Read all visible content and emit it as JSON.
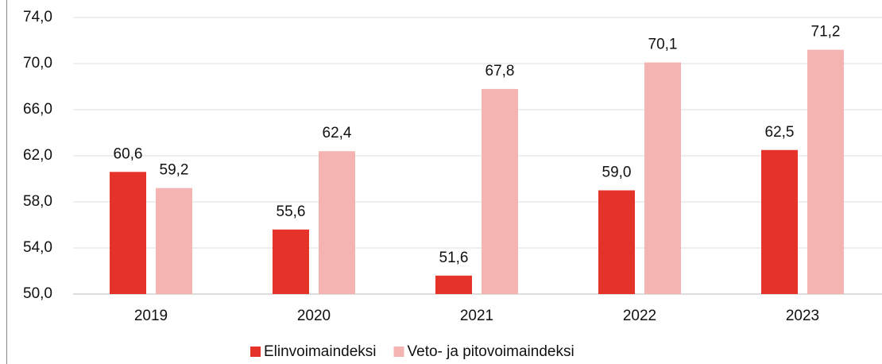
{
  "chart_data": {
    "type": "bar",
    "categories": [
      "2019",
      "2020",
      "2021",
      "2022",
      "2023"
    ],
    "series": [
      {
        "name": "Elinvoimaindeksi",
        "color": "#e5332a",
        "values": [
          60.6,
          55.6,
          51.6,
          59.0,
          62.5
        ],
        "value_labels": [
          "60,6",
          "55,6",
          "51,6",
          "59,0",
          "62,5"
        ]
      },
      {
        "name": "Veto- ja pitovoimaindeksi",
        "color": "#f4b5b2",
        "values": [
          59.2,
          62.4,
          67.8,
          70.1,
          71.2
        ],
        "value_labels": [
          "59,2",
          "62,4",
          "67,8",
          "70,1",
          "71,2"
        ]
      }
    ],
    "ylim": [
      50,
      74
    ],
    "yticks": [
      {
        "value": 50,
        "label": "50,0"
      },
      {
        "value": 54,
        "label": "54,0"
      },
      {
        "value": 58,
        "label": "58,0"
      },
      {
        "value": 62,
        "label": "62,0"
      },
      {
        "value": 66,
        "label": "66,0"
      },
      {
        "value": 70,
        "label": "70,0"
      },
      {
        "value": 74,
        "label": "74,0"
      }
    ],
    "grid": true,
    "legend": "bottom"
  }
}
